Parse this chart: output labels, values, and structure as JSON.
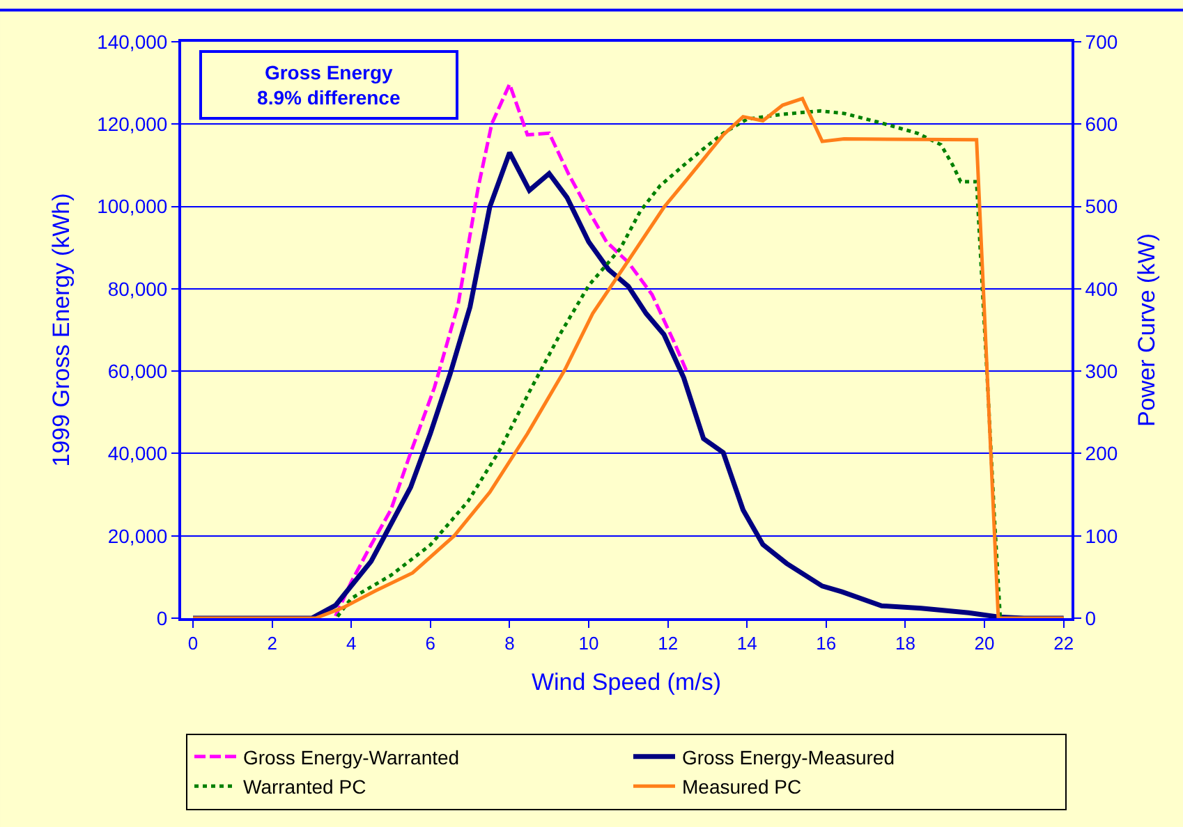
{
  "chart_data": {
    "type": "line",
    "xlabel": "Wind Speed (m/s)",
    "ylabel": "1999 Gross Energy (kWh)",
    "y2label": "Power Curve (kW)",
    "annotations": [
      "Gross Energy\n8.9% difference"
    ],
    "xlim": [
      -0.3,
      22.2
    ],
    "xticks": [
      0,
      2,
      4,
      6,
      8,
      10,
      12,
      14,
      16,
      18,
      20,
      22
    ],
    "ylim": [
      0,
      140000
    ],
    "yticks": [
      {
        "value": 0,
        "label": "0"
      },
      {
        "value": 20000,
        "label": "20,000"
      },
      {
        "value": 40000,
        "label": "40,000"
      },
      {
        "value": 60000,
        "label": "60,000"
      },
      {
        "value": 80000,
        "label": "80,000"
      },
      {
        "value": 100000,
        "label": "100,000"
      },
      {
        "value": 120000,
        "label": "120,000"
      },
      {
        "value": 140000,
        "label": "140,000"
      }
    ],
    "y2lim": [
      0,
      700
    ],
    "y2ticks": [
      0,
      100,
      200,
      300,
      400,
      500,
      600,
      700
    ],
    "grid": "y",
    "legend": "bottom",
    "series": [
      {
        "name": "Gross Energy-Warranted",
        "color": "#ff00ff",
        "line_style": "dashed",
        "x": [
          3.6,
          4.0,
          4.5,
          5.0,
          5.5,
          6.1,
          6.7,
          7.2,
          7.55,
          8.0,
          8.45,
          9.0,
          9.5,
          10.0,
          10.45,
          11.0,
          11.6,
          12.15,
          12.5
        ],
        "values": [
          500,
          8800,
          17800,
          26300,
          40200,
          56000,
          76200,
          104300,
          120100,
          129700,
          117400,
          117800,
          107700,
          98900,
          91400,
          86400,
          78600,
          67200,
          59400
        ]
      },
      {
        "name": "Gross Energy-Measured",
        "color": "#000080",
        "line_style": "solid",
        "x": [
          0,
          1,
          2,
          3,
          3.6,
          4.5,
          5.5,
          6.0,
          6.5,
          7.0,
          7.5,
          8.0,
          8.5,
          9.0,
          9.45,
          10.0,
          10.5,
          11.0,
          11.45,
          11.9,
          12.4,
          12.9,
          13.4,
          13.9,
          14.4,
          15.0,
          15.9,
          16.4,
          17.4,
          18.4,
          19.6,
          20.35,
          21,
          22
        ],
        "values": [
          0,
          0,
          0,
          0,
          3100,
          13800,
          31800,
          44900,
          59400,
          75600,
          99900,
          113100,
          103900,
          108000,
          102200,
          91400,
          84700,
          80600,
          74000,
          68900,
          58400,
          43600,
          40200,
          26300,
          17900,
          13300,
          7800,
          6400,
          3000,
          2400,
          1300,
          300,
          0,
          0
        ]
      },
      {
        "name": "Warranted PC",
        "color": "#008000",
        "line_style": "dotted",
        "axis": "y2",
        "x": [
          3.65,
          4.0,
          5.0,
          6.0,
          6.95,
          7.75,
          8.5,
          9.3,
          10.0,
          10.8,
          11.3,
          11.8,
          12.4,
          12.9,
          13.4,
          14.0,
          14.9,
          15.85,
          16.45,
          17.35,
          18.3,
          18.9,
          19.2,
          19.4,
          19.8,
          20.07,
          20.25,
          20.4
        ],
        "values": [
          2,
          24,
          52,
          89,
          142,
          204,
          275,
          347,
          404,
          449,
          494,
          525,
          550,
          570,
          589,
          606,
          612,
          616,
          613,
          602,
          589,
          575,
          550,
          530,
          530,
          292,
          123,
          0
        ]
      },
      {
        "name": "Measured PC",
        "color": "#ff7f1a",
        "line_style": "solid",
        "axis": "y2",
        "x": [
          0,
          1,
          2,
          3.1,
          3.8,
          4.6,
          5.55,
          6.6,
          7.5,
          8.45,
          9.4,
          10.1,
          10.9,
          11.9,
          12.4,
          13.4,
          13.9,
          14.4,
          14.9,
          15.4,
          15.9,
          16.45,
          19.8,
          20.35,
          21,
          22
        ],
        "values": [
          0,
          0,
          0,
          0,
          13,
          33,
          55,
          100,
          153,
          224,
          302,
          370,
          427,
          499,
          528,
          587,
          609,
          604,
          623,
          631,
          579,
          582,
          581,
          0,
          0,
          0
        ]
      }
    ]
  }
}
